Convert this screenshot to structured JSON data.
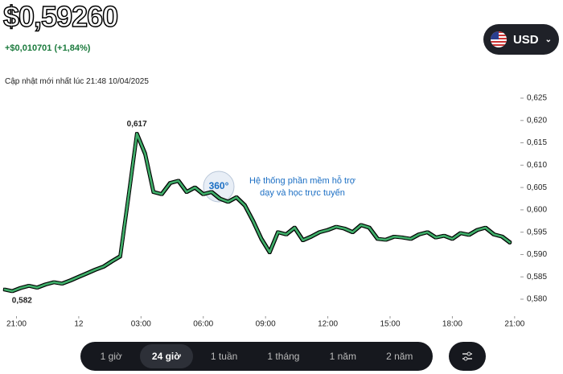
{
  "header": {
    "price": "$0,59260",
    "change": "+$0,010701 (+1,84%)",
    "updated": "Cập nhật mới nhất lúc 21:48 10/04/2025",
    "currency": "USD"
  },
  "watermark": {
    "logo": "360°",
    "line1": "Hệ thống phần mềm hỗ trợ",
    "line2": "dạy và học trực tuyến"
  },
  "chart_data": {
    "type": "line",
    "color": "#3fae6a",
    "x": [
      0.4,
      0.8,
      1.2,
      1.6,
      2.0,
      2.4,
      2.8,
      3.2,
      3.6,
      4.0,
      4.4,
      4.8,
      5.2,
      5.6,
      6.0,
      6.4,
      6.8,
      7.2,
      7.6,
      8.0,
      8.4,
      8.8,
      9.2,
      9.6,
      10.0,
      10.4,
      10.8,
      11.2,
      11.6,
      12.0,
      12.4,
      12.8,
      13.2,
      13.6,
      14.0,
      14.4,
      14.8,
      15.2,
      15.6,
      16.0,
      16.4,
      16.8,
      17.2,
      17.6,
      18.0,
      18.4,
      18.8,
      19.2,
      19.6,
      20.0,
      20.4,
      20.8,
      21.2,
      21.6,
      22.0,
      22.4,
      22.8,
      23.2,
      23.6,
      24.0,
      24.4,
      24.8
    ],
    "values": [
      0.5822,
      0.5818,
      0.5825,
      0.583,
      0.5826,
      0.5833,
      0.5838,
      0.5835,
      0.5842,
      0.585,
      0.5858,
      0.5866,
      0.5873,
      0.5885,
      0.5896,
      0.603,
      0.617,
      0.6125,
      0.604,
      0.6035,
      0.606,
      0.6065,
      0.604,
      0.605,
      0.6035,
      0.604,
      0.6025,
      0.6018,
      0.6028,
      0.601,
      0.5975,
      0.5935,
      0.5905,
      0.595,
      0.5945,
      0.596,
      0.5932,
      0.594,
      0.595,
      0.5955,
      0.5962,
      0.5958,
      0.595,
      0.5966,
      0.596,
      0.5935,
      0.5933,
      0.594,
      0.5938,
      0.5935,
      0.5945,
      0.595,
      0.5938,
      0.5942,
      0.5935,
      0.5948,
      0.5944,
      0.5955,
      0.596,
      0.5945,
      0.594,
      0.5926
    ],
    "xlim": [
      0.4,
      25.2
    ],
    "xticks": [
      {
        "value": 1,
        "label": "21:00"
      },
      {
        "value": 4,
        "label": "12"
      },
      {
        "value": 7,
        "label": "03:00"
      },
      {
        "value": 10,
        "label": "06:00"
      },
      {
        "value": 13,
        "label": "09:00"
      },
      {
        "value": 16,
        "label": "12:00"
      },
      {
        "value": 19,
        "label": "15:00"
      },
      {
        "value": 22,
        "label": "18:00"
      },
      {
        "value": 25,
        "label": "21:00"
      }
    ],
    "ylim": [
      0.5764,
      0.6268
    ],
    "yticks": [
      {
        "value": 0.625,
        "label": "0,625"
      },
      {
        "value": 0.62,
        "label": "0,620"
      },
      {
        "value": 0.615,
        "label": "0,615"
      },
      {
        "value": 0.61,
        "label": "0,610"
      },
      {
        "value": 0.605,
        "label": "0,605"
      },
      {
        "value": 0.6,
        "label": "0,600"
      },
      {
        "value": 0.595,
        "label": "0,595"
      },
      {
        "value": 0.59,
        "label": "0,590"
      },
      {
        "value": 0.585,
        "label": "0,585"
      },
      {
        "value": 0.58,
        "label": "0,580"
      }
    ],
    "annotations": [
      {
        "x": 6.8,
        "y": 0.617,
        "text": "0,617"
      },
      {
        "x": 0.8,
        "y": 0.5818,
        "text": "0,582"
      }
    ]
  },
  "timeframes": [
    "1 giờ",
    "24 giờ",
    "1 tuần",
    "1 tháng",
    "1 năm",
    "2 năm"
  ],
  "active_timeframe": 1
}
